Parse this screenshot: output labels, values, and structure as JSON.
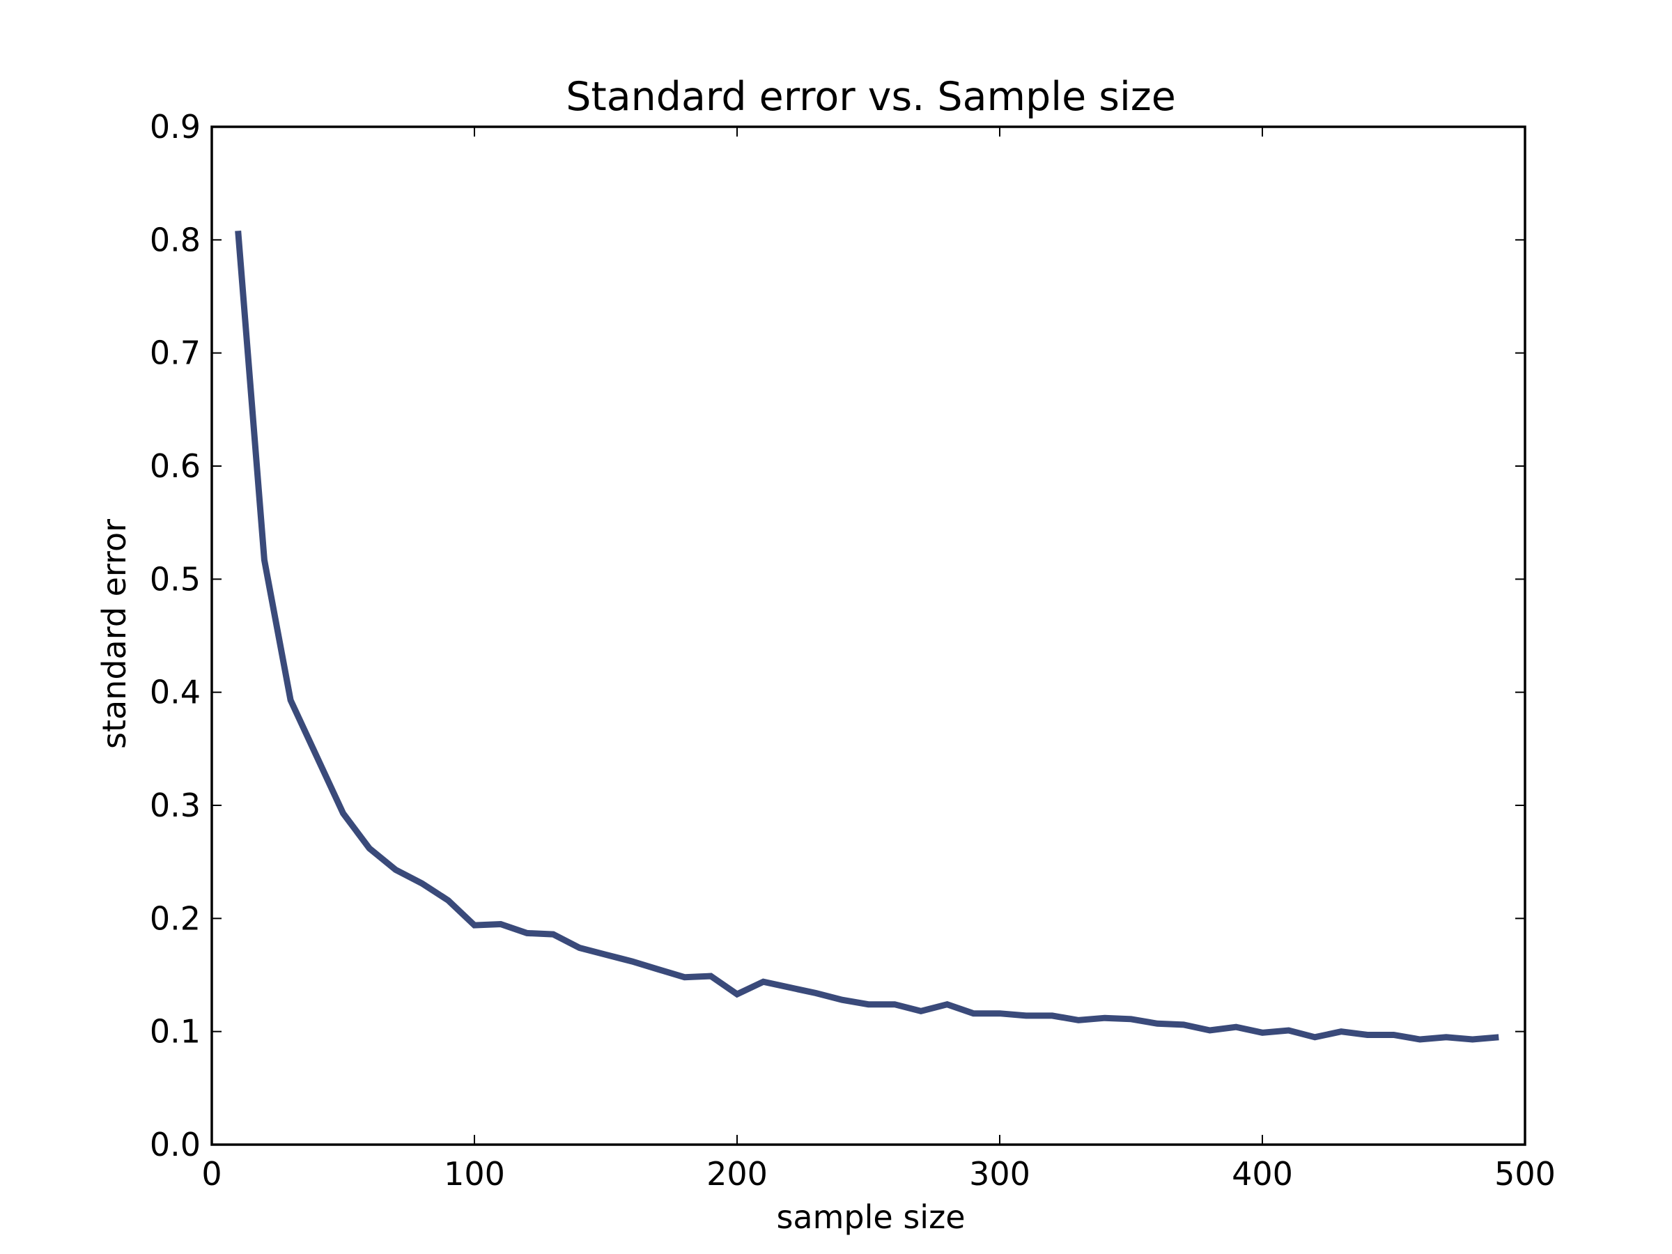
{
  "chart_data": {
    "type": "line",
    "title": "Standard error vs. Sample size",
    "xlabel": "sample size",
    "ylabel": "standard error",
    "xlim": [
      0,
      500
    ],
    "ylim": [
      0.0,
      0.9
    ],
    "xticks": [
      0,
      100,
      200,
      300,
      400,
      500
    ],
    "xtick_labels": [
      "0",
      "100",
      "200",
      "300",
      "400",
      "500"
    ],
    "yticks": [
      0.0,
      0.1,
      0.2,
      0.3,
      0.4,
      0.5,
      0.6,
      0.7,
      0.8,
      0.9
    ],
    "ytick_labels": [
      "0.0",
      "0.1",
      "0.2",
      "0.3",
      "0.4",
      "0.5",
      "0.6",
      "0.7",
      "0.8",
      "0.9"
    ],
    "grid": false,
    "legend": "none",
    "series": [
      {
        "color": "#3a4a7a",
        "x": [
          10,
          20,
          30,
          40,
          50,
          60,
          70,
          80,
          90,
          100,
          110,
          120,
          130,
          140,
          150,
          160,
          170,
          180,
          190,
          200,
          210,
          220,
          230,
          240,
          250,
          260,
          270,
          280,
          290,
          300,
          310,
          320,
          330,
          340,
          350,
          360,
          370,
          380,
          390,
          400,
          410,
          420,
          430,
          440,
          450,
          460,
          470,
          480,
          490
        ],
        "y": [
          0.808,
          0.517,
          0.393,
          0.343,
          0.293,
          0.262,
          0.243,
          0.231,
          0.216,
          0.194,
          0.195,
          0.187,
          0.186,
          0.174,
          0.168,
          0.162,
          0.155,
          0.148,
          0.149,
          0.133,
          0.144,
          0.139,
          0.134,
          0.128,
          0.124,
          0.124,
          0.118,
          0.124,
          0.116,
          0.116,
          0.114,
          0.114,
          0.11,
          0.112,
          0.111,
          0.107,
          0.106,
          0.101,
          0.104,
          0.099,
          0.101,
          0.095,
          0.1,
          0.097,
          0.097,
          0.093,
          0.095,
          0.093,
          0.095
        ]
      }
    ]
  }
}
